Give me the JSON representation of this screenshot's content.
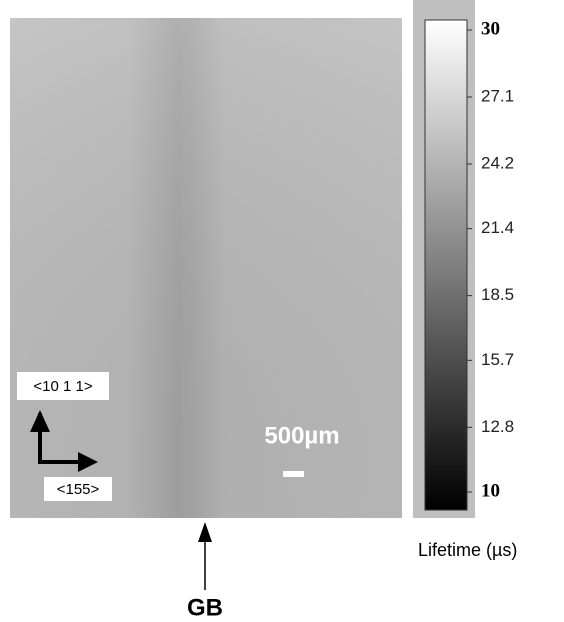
{
  "image": {
    "orientation_labels": [
      "<10 1 1>",
      "<155>"
    ],
    "scale_bar_label": "500µm",
    "annotation": "GB"
  },
  "colorbar": {
    "label": "Lifetime (µs)",
    "lim": [
      10,
      30
    ],
    "ticks": [
      30,
      27.1,
      24.2,
      21.4,
      18.5,
      15.7,
      12.8,
      10
    ]
  }
}
